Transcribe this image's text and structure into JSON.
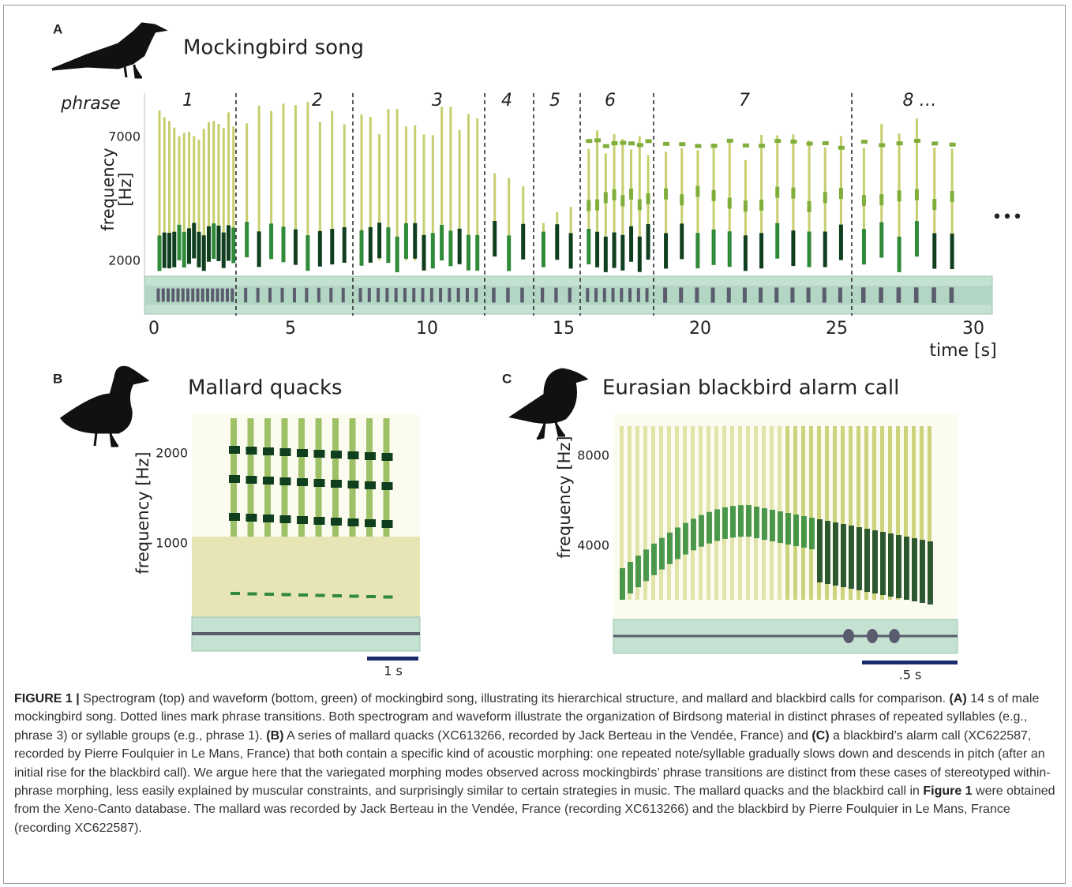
{
  "panel_a": {
    "letter": "A",
    "title": "Mockingbird song",
    "phrase_label": "phrase",
    "phrases": [
      "1",
      "2",
      "3",
      "4",
      "5",
      "6",
      "7",
      "8 …"
    ],
    "y_label": [
      "frequency",
      "[Hz]"
    ],
    "yticks": [
      "7000",
      "2000"
    ],
    "xticks": [
      "0",
      "5",
      "10",
      "15",
      "20",
      "25",
      "30"
    ],
    "x_label": "time [s]",
    "more": "•••"
  },
  "panel_b": {
    "letter": "B",
    "title": "Mallard quacks",
    "y_label": "frequency [Hz]",
    "yticks": [
      "2000",
      "1000"
    ],
    "scale": "1 s"
  },
  "panel_c": {
    "letter": "C",
    "title": "Eurasian blackbird alarm call",
    "y_label": "frequency [Hz]",
    "yticks": [
      "8000",
      "4000"
    ],
    "scale": ".5 s"
  },
  "caption": {
    "label": "FIGURE 1 |",
    "runs": [
      {
        "text": " Spectrogram (top) and waveform (bottom, green) of mockingbird song, illustrating its hierarchical structure, and mallard and blackbird calls for comparison. ",
        "bold": false
      },
      {
        "text": "(A)",
        "bold": true
      },
      {
        "text": " 14 s of male mockingbird song. Dotted lines mark phrase transitions. Both spectrogram and waveform illustrate the organization of Birdsong material in distinct phrases of repeated syllables (e.g., phrase 3) or syllable groups (e.g., phrase 1). ",
        "bold": false
      },
      {
        "text": "(B)",
        "bold": true
      },
      {
        "text": " A series of mallard quacks (XC613266, recorded by Jack Berteau in the Vendée, France) and ",
        "bold": false
      },
      {
        "text": "(C)",
        "bold": true
      },
      {
        "text": " a blackbird’s alarm call (XC622587, recorded by Pierre Foulquier in Le Mans, France) that both contain a specific kind of acoustic morphing: one repeated note/syllable gradually slows down and descends in pitch (after an initial rise for the blackbird call). We argue here that the variegated morphing modes observed across mockingbirds’ phrase transitions are distinct from these cases of stereotyped within-phrase morphing, less easily explained by muscular constraints, and surprisingly similar to certain strategies in music. The mallard quacks and the blackbird call in ",
        "bold": false
      },
      {
        "text": "Figure 1",
        "bold": true
      },
      {
        "text": " were obtained from the Xeno-Canto database. The mallard was recorded by Jack Berteau in the Vendée, France (recording XC613266) and the blackbird by Pierre Foulquier in Le Mans, France (recording XC622587).",
        "bold": false
      }
    ]
  }
}
